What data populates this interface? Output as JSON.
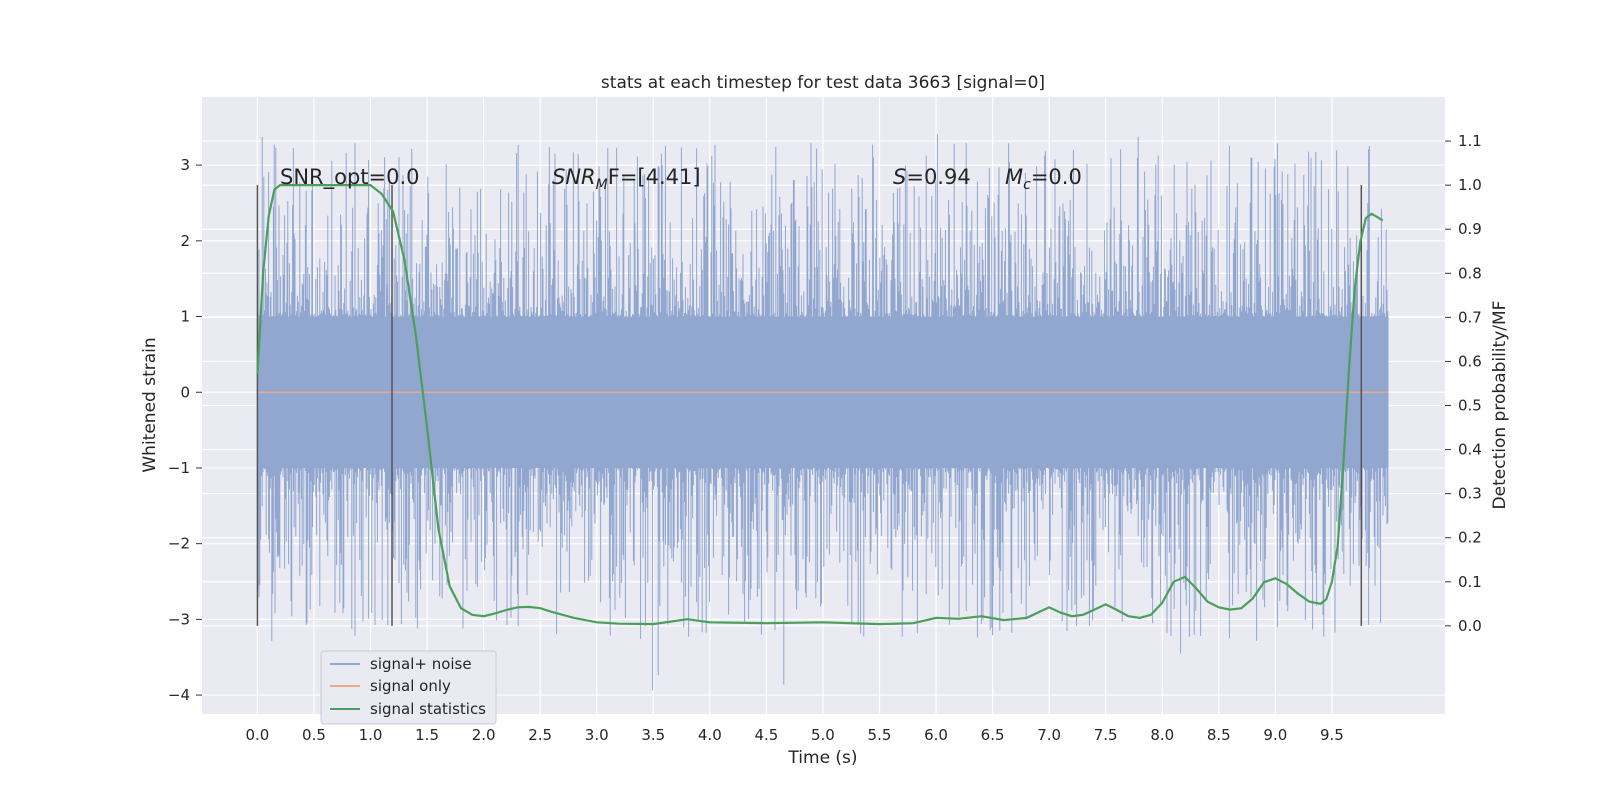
{
  "chart_data": {
    "type": "line",
    "title": "stats at each timestep for test data 3663 [signal=0]",
    "xlabel": "Time (s)",
    "ylabel": "Whitened strain",
    "y2label": "Detection probability/MF",
    "xlim": [
      -0.49,
      10.5
    ],
    "ylim": [
      -4.25,
      3.9
    ],
    "y2lim": [
      -0.2,
      1.2
    ],
    "xticks": [
      "0.0",
      "0.5",
      "1.0",
      "1.5",
      "2.0",
      "2.5",
      "3.0",
      "3.5",
      "4.0",
      "4.5",
      "5.0",
      "5.5",
      "6.0",
      "6.5",
      "7.0",
      "7.5",
      "8.0",
      "8.5",
      "9.0",
      "9.5"
    ],
    "yticks": [
      "3",
      "2",
      "1",
      "0",
      "−1",
      "−2",
      "−3",
      "−4"
    ],
    "y2ticks": [
      "1.1",
      "1.0",
      "0.9",
      "0.8",
      "0.7",
      "0.6",
      "0.5",
      "0.4",
      "0.3",
      "0.2",
      "0.1",
      "0.0"
    ],
    "grid": true,
    "legend_placement": "lower-left",
    "annotations": {
      "snr_opt": "SNR_opt=0.0",
      "snr_mf_main": "SNR",
      "snr_mf_sub": "M",
      "snr_mf_rest": "F=[4.41]",
      "s_main": "S",
      "s_rest": "=0.94",
      "mc_main": "M",
      "mc_sub": "c",
      "mc_rest": "=0.0"
    },
    "vertical_markers_x": [
      0.0,
      1.19,
      9.76
    ],
    "series": [
      {
        "name": "signal+ noise",
        "color": "#92a7d0",
        "x_range": [
          0.0,
          10.0
        ],
        "core_band": [
          -1.0,
          1.0
        ],
        "extremes_max": 3.55,
        "extremes_min": -4.05
      },
      {
        "name": "signal only",
        "color": "#e8a98c",
        "x": [
          0.0,
          10.0
        ],
        "y": [
          0.0,
          0.0
        ]
      },
      {
        "name": "signal statistics",
        "color": "#4c9f5a",
        "axis": "right",
        "x": [
          0.0,
          0.05,
          0.1,
          0.15,
          0.2,
          0.3,
          0.4,
          0.5,
          0.6,
          0.7,
          0.8,
          0.9,
          1.0,
          1.1,
          1.2,
          1.3,
          1.4,
          1.5,
          1.6,
          1.7,
          1.8,
          1.9,
          2.0,
          2.1,
          2.2,
          2.3,
          2.4,
          2.5,
          2.6,
          2.8,
          3.0,
          3.2,
          3.5,
          3.8,
          4.0,
          4.5,
          5.0,
          5.5,
          5.8,
          6.0,
          6.2,
          6.4,
          6.6,
          6.8,
          6.9,
          7.0,
          7.1,
          7.2,
          7.3,
          7.4,
          7.5,
          7.6,
          7.7,
          7.8,
          7.9,
          8.0,
          8.1,
          8.2,
          8.3,
          8.4,
          8.5,
          8.6,
          8.7,
          8.8,
          8.9,
          9.0,
          9.1,
          9.2,
          9.3,
          9.4,
          9.45,
          9.5,
          9.55,
          9.6,
          9.65,
          9.7,
          9.75,
          9.8,
          9.85,
          9.9,
          9.95
        ],
        "y": [
          0.57,
          0.8,
          0.93,
          0.99,
          1.0,
          1.0,
          1.0,
          1.0,
          1.0,
          1.0,
          1.0,
          1.0,
          1.0,
          0.98,
          0.94,
          0.83,
          0.66,
          0.45,
          0.22,
          0.09,
          0.04,
          0.025,
          0.022,
          0.028,
          0.036,
          0.042,
          0.043,
          0.04,
          0.032,
          0.018,
          0.008,
          0.005,
          0.004,
          0.015,
          0.008,
          0.006,
          0.008,
          0.004,
          0.006,
          0.018,
          0.016,
          0.022,
          0.013,
          0.018,
          0.03,
          0.042,
          0.03,
          0.022,
          0.025,
          0.037,
          0.049,
          0.036,
          0.022,
          0.018,
          0.025,
          0.052,
          0.1,
          0.111,
          0.085,
          0.055,
          0.042,
          0.037,
          0.04,
          0.062,
          0.099,
          0.108,
          0.095,
          0.073,
          0.055,
          0.05,
          0.06,
          0.1,
          0.18,
          0.36,
          0.58,
          0.76,
          0.87,
          0.925,
          0.935,
          0.928,
          0.92
        ]
      }
    ]
  }
}
